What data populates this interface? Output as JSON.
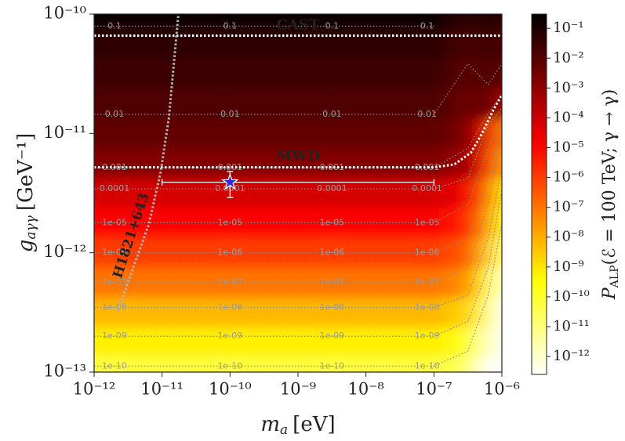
{
  "chart_data": {
    "type": "heatmap",
    "colormap": "hot_r",
    "xscale": "log",
    "yscale": "log",
    "zscale": "log",
    "xlim": [
      1e-12,
      1e-06
    ],
    "ylim": [
      1e-13,
      1e-10
    ],
    "zlim": [
      2.5e-13,
      0.3
    ],
    "xticks": [
      {
        "value": 1e-12,
        "label": "10⁻¹²"
      },
      {
        "value": 1e-11,
        "label": "10⁻¹¹"
      },
      {
        "value": 1e-10,
        "label": "10⁻¹⁰"
      },
      {
        "value": 1e-09,
        "label": "10⁻⁹"
      },
      {
        "value": 1e-08,
        "label": "10⁻⁸"
      },
      {
        "value": 1e-07,
        "label": "10⁻⁷"
      },
      {
        "value": 1e-06,
        "label": "10⁻⁶"
      }
    ],
    "yticks": [
      {
        "value": 1e-13,
        "label": "10⁻¹³"
      },
      {
        "value": 1e-12,
        "label": "10⁻¹²"
      },
      {
        "value": 1e-11,
        "label": "10⁻¹¹"
      },
      {
        "value": 1e-10,
        "label": "10⁻¹⁰"
      }
    ],
    "zticks": [
      {
        "value": 1e-12,
        "label": "10⁻¹²"
      },
      {
        "value": 1e-11,
        "label": "10⁻¹¹"
      },
      {
        "value": 1e-10,
        "label": "10⁻¹⁰"
      },
      {
        "value": 1e-09,
        "label": "10⁻⁹"
      },
      {
        "value": 1e-08,
        "label": "10⁻⁸"
      },
      {
        "value": 1e-07,
        "label": "10⁻⁷"
      },
      {
        "value": 1e-06,
        "label": "10⁻⁶"
      },
      {
        "value": 1e-05,
        "label": "10⁻⁵"
      },
      {
        "value": 0.0001,
        "label": "10⁻⁴"
      },
      {
        "value": 0.001,
        "label": "10⁻³"
      },
      {
        "value": 0.01,
        "label": "10⁻²"
      },
      {
        "value": 0.1,
        "label": "10⁻¹"
      }
    ],
    "xlabel": {
      "symbol": "m",
      "subscript": "a",
      "unit": "[eV]"
    },
    "ylabel": {
      "symbol": "g",
      "subscript": "aγγ",
      "unit": "[GeV⁻¹]"
    },
    "zlabel": {
      "symbol": "P",
      "subscript": "ALP",
      "rest": "(ℰ = 100 TeV; γ → γ)"
    },
    "x": [
      1e-12,
      1e-10,
      1e-08,
      1e-07,
      3.16e-07,
      6.3e-07,
      1e-06
    ],
    "y": [
      1e-10,
      5.62e-11,
      3.16e-11,
      1.78e-11,
      1e-11,
      5.62e-12,
      3.16e-12,
      1.78e-12,
      1e-12,
      5.62e-13,
      3.16e-13,
      1.78e-13,
      1e-13
    ],
    "z": [
      [
        0.16,
        0.16,
        0.16,
        0.16,
        0.05,
        0.08,
        0.05
      ],
      [
        0.05,
        0.05,
        0.05,
        0.05,
        0.016,
        0.025,
        0.016
      ],
      [
        0.025,
        0.025,
        0.025,
        0.025,
        0.0079,
        0.013,
        0.0079
      ],
      [
        0.013,
        0.013,
        0.013,
        0.013,
        0.004,
        0.0063,
        0.0004
      ],
      [
        0.0063,
        0.0063,
        0.0063,
        0.0063,
        0.002,
        2e-05,
        6.3e-08
      ],
      [
        0.0016,
        0.0016,
        0.0016,
        0.0016,
        0.0005,
        5e-06,
        1.6e-08
      ],
      [
        6.3e-05,
        6.3e-05,
        6.3e-05,
        6.3e-05,
        2e-05,
        2e-07,
        6.3e-10
      ],
      [
        1e-05,
        1e-05,
        1e-05,
        1e-05,
        3.2e-06,
        3.2e-08,
        1e-10
      ],
      [
        1e-06,
        1e-06,
        1e-06,
        1e-06,
        3.2e-07,
        3.2e-09,
        1e-11
      ],
      [
        1e-07,
        1e-07,
        1e-07,
        1e-07,
        3.2e-08,
        3.2e-10,
        1e-12
      ],
      [
        6.3e-09,
        6.3e-09,
        6.3e-09,
        6.3e-09,
        2e-09,
        2e-11,
        3e-13
      ],
      [
        6.3e-10,
        6.3e-10,
        6.3e-10,
        6.3e-10,
        2e-10,
        2e-12,
        3e-13
      ],
      [
        6.3e-11,
        6.3e-11,
        6.3e-11,
        6.3e-11,
        2e-11,
        2e-13,
        3e-13
      ]
    ],
    "contour_color": "#8a8a8a",
    "contours": [
      {
        "value": 0.1,
        "label": "0.1"
      },
      {
        "value": 0.01,
        "label": "0.01"
      },
      {
        "value": 0.001,
        "label": "0.001"
      },
      {
        "value": 0.0001,
        "label": "0.0001"
      },
      {
        "value": 1e-05,
        "label": "1e-05"
      },
      {
        "value": 1e-06,
        "label": "1e-06"
      },
      {
        "value": 1e-07,
        "label": "1e-07"
      },
      {
        "value": 1e-08,
        "label": "1e-08"
      },
      {
        "value": 1e-09,
        "label": "1e-09"
      },
      {
        "value": 1e-10,
        "label": "1e-10"
      }
    ],
    "limits": [
      {
        "name": "CAST",
        "color": "#ffffff",
        "x": [
          1e-12,
          1e-06
        ],
        "y": [
          6.6e-11,
          6.6e-11
        ]
      },
      {
        "name": "MWD",
        "color": "#ffffff",
        "x": [
          1e-12,
          1e-07,
          2e-07,
          3.5e-07,
          5.1e-07,
          7.6e-07,
          1e-06
        ],
        "y": [
          5.2e-12,
          5.2e-12,
          5.5e-12,
          6.9e-12,
          1e-11,
          1.6e-11,
          2.1e-11
        ]
      },
      {
        "name": "H1821+643",
        "color": "#b4b4b4",
        "x": [
          2.2e-12,
          3.8e-12,
          6.4e-12,
          9.5e-12,
          1.26e-11,
          1.74e-11
        ],
        "y": [
          3.2e-13,
          7.6e-13,
          1.74e-12,
          4.7e-12,
          1.35e-11,
          1e-10
        ]
      }
    ],
    "point": {
      "color": "#2a2ad8",
      "x": 1e-10,
      "y": 3.9e-12,
      "x_range": [
        1e-11,
        1e-07
      ],
      "y_range": [
        2.9e-12,
        4.8e-12
      ]
    }
  }
}
